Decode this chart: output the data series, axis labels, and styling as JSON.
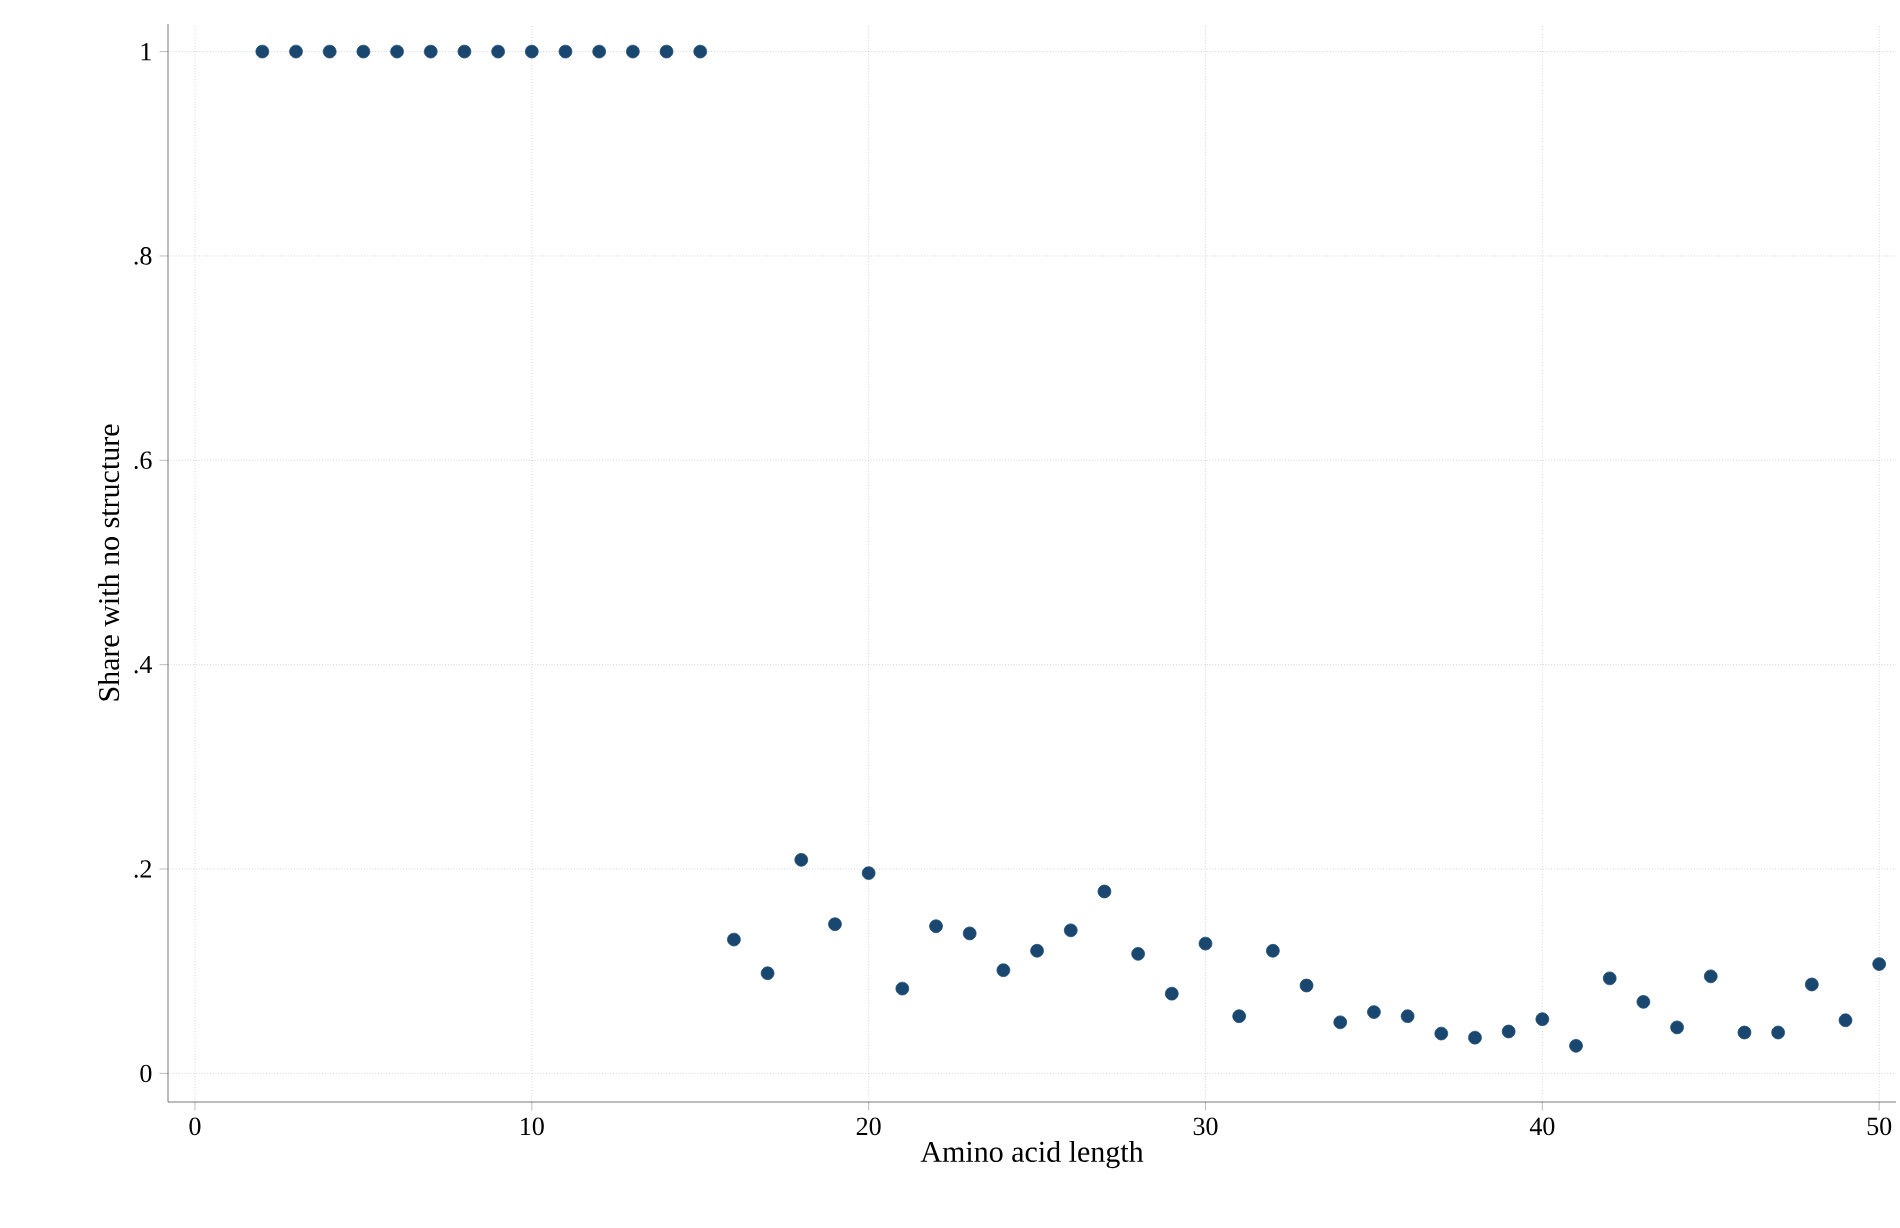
{
  "chart_data": {
    "type": "scatter",
    "xlabel": "Amino acid length",
    "ylabel": "Share with no structure",
    "x": [
      2,
      3,
      4,
      5,
      6,
      7,
      8,
      9,
      10,
      11,
      12,
      13,
      14,
      15,
      16,
      17,
      18,
      19,
      20,
      21,
      22,
      23,
      24,
      25,
      26,
      27,
      28,
      29,
      30,
      31,
      32,
      33,
      34,
      35,
      36,
      37,
      38,
      39,
      40,
      41,
      42,
      43,
      44,
      45,
      46,
      47,
      48,
      49,
      50
    ],
    "values": [
      1,
      1,
      1,
      1,
      1,
      1,
      1,
      1,
      1,
      1,
      1,
      1,
      1,
      1,
      0.131,
      0.098,
      0.209,
      0.146,
      0.196,
      0.083,
      0.144,
      0.137,
      0.101,
      0.12,
      0.14,
      0.178,
      0.117,
      0.078,
      0.127,
      0.056,
      0.12,
      0.086,
      0.05,
      0.06,
      0.056,
      0.039,
      0.035,
      0.041,
      0.053,
      0.027,
      0.093,
      0.07,
      0.045,
      0.095,
      0.04,
      0.04,
      0.087,
      0.052,
      0.107
    ],
    "color": "#1a476f",
    "grid": true,
    "xlim": [
      -0.8,
      50.5
    ],
    "ylim": [
      -0.028,
      1.027
    ],
    "xticks": [
      0,
      10,
      20,
      30,
      40,
      50
    ],
    "yticks": [
      {
        "value": 0,
        "label": "0"
      },
      {
        "value": 0.2,
        "label": ".2"
      },
      {
        "value": 0.4,
        "label": ".4"
      },
      {
        "value": 0.6,
        "label": ".6"
      },
      {
        "value": 0.8,
        "label": ".8"
      },
      {
        "value": 1,
        "label": "1"
      }
    ]
  }
}
